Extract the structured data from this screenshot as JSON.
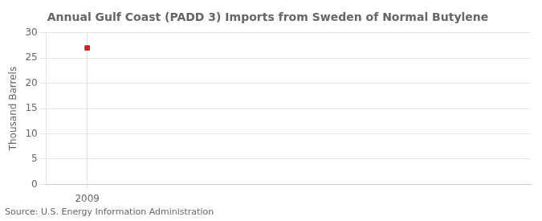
{
  "chart_data": {
    "type": "scatter",
    "title": "Annual Gulf Coast (PADD 3) Imports from Sweden of Normal Butylene",
    "ylabel": "Thousand Barrels",
    "annotation": "Source: U.S. Energy Information Administration",
    "x": [
      2009
    ],
    "values": [
      27
    ],
    "color": "#cc2222",
    "marker": "square",
    "xlim": [
      2008.4,
      2015.5
    ],
    "xticks": [
      2009
    ],
    "ylim": [
      0,
      30
    ],
    "yticks": [
      0,
      5,
      10,
      15,
      20,
      25,
      30
    ],
    "grid": true
  }
}
